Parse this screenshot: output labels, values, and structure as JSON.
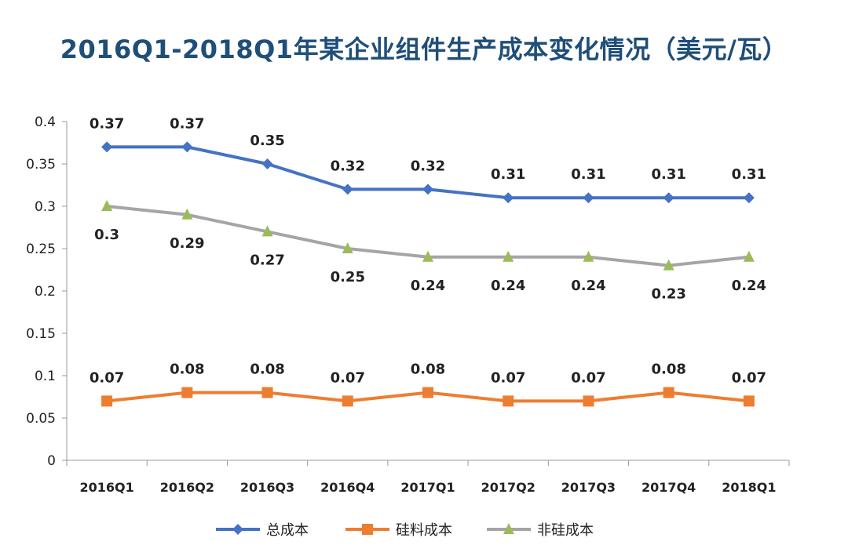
{
  "chart_data": {
    "type": "line",
    "title": "2016Q1-2018Q1年某企业组件生产成本变化情况（美元/瓦）",
    "categories": [
      "2016Q1",
      "2016Q2",
      "2016Q3",
      "2016Q4",
      "2017Q1",
      "2017Q2",
      "2017Q3",
      "2017Q4",
      "2018Q1"
    ],
    "ylim": [
      0,
      0.4
    ],
    "yticks": [
      "0",
      "0.05",
      "0.1",
      "0.15",
      "0.2",
      "0.25",
      "0.3",
      "0.35",
      "0.4"
    ],
    "xlabel": "",
    "ylabel": "",
    "grid": false,
    "legend_position": "bottom",
    "series": [
      {
        "name": "总成本",
        "color": "#4472c4",
        "marker": "diamond",
        "label_position": "above",
        "values": [
          0.37,
          0.37,
          0.35,
          0.32,
          0.32,
          0.31,
          0.31,
          0.31,
          0.31
        ],
        "labels": [
          "0.37",
          "0.37",
          "0.35",
          "0.32",
          "0.32",
          "0.31",
          "0.31",
          "0.31",
          "0.31"
        ]
      },
      {
        "name": "硅料成本",
        "color": "#ed7d31",
        "marker": "square",
        "label_position": "above",
        "values": [
          0.07,
          0.08,
          0.08,
          0.07,
          0.08,
          0.07,
          0.07,
          0.08,
          0.07
        ],
        "labels": [
          "0.07",
          "0.08",
          "0.08",
          "0.07",
          "0.08",
          "0.07",
          "0.07",
          "0.08",
          "0.07"
        ]
      },
      {
        "name": "非硅成本",
        "color": "#a5a5a5",
        "marker_color": "#9bbb59",
        "marker": "triangle",
        "label_position": "below",
        "values": [
          0.3,
          0.29,
          0.27,
          0.25,
          0.24,
          0.24,
          0.24,
          0.23,
          0.24
        ],
        "labels": [
          "0.3",
          "0.29",
          "0.27",
          "0.25",
          "0.24",
          "0.24",
          "0.24",
          "0.23",
          "0.24"
        ]
      }
    ]
  }
}
